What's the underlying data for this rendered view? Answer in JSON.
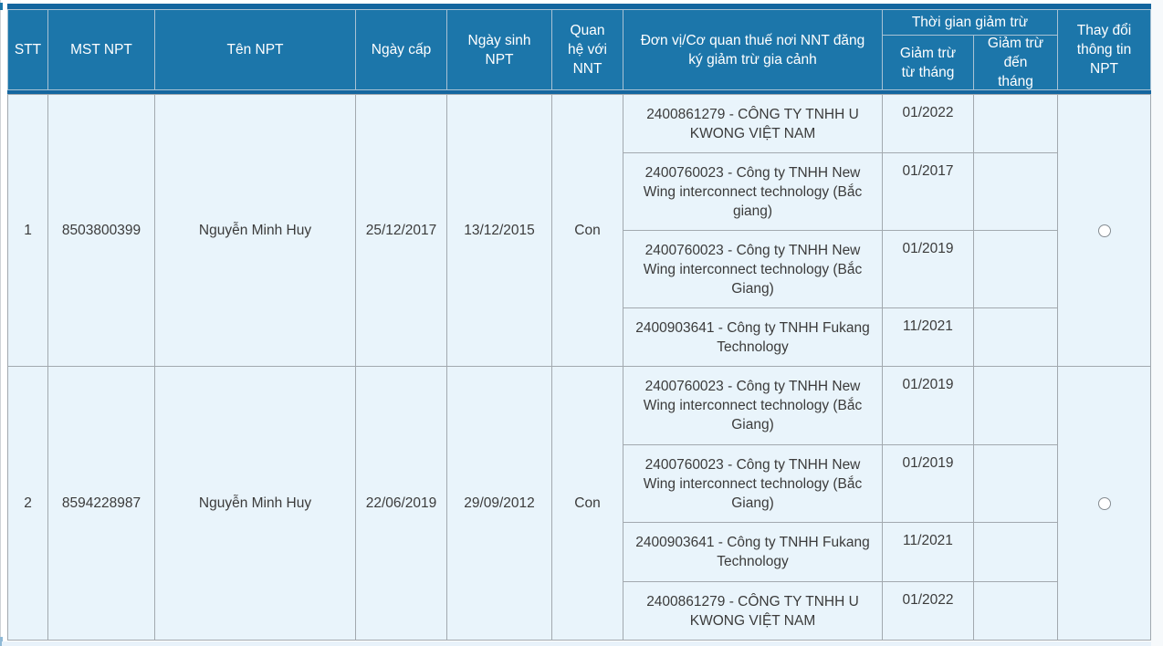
{
  "colors": {
    "header_blue": "#1c76aa",
    "header_band_blue": "#14669f",
    "body_cell_bg": "#e9f4fb",
    "body_border_gray": "#a2a9af",
    "header_text": "#ffffff",
    "body_text": "#3b3b3b"
  },
  "table": {
    "headers": {
      "stt": "STT",
      "mst": "MST NPT",
      "ten": "Tên NPT",
      "ngay_cap": "Ngày cấp",
      "ngay_sinh": "Ngày sinh NPT",
      "quan_he": "Quan hệ với NNT",
      "don_vi": "Đơn vị/Cơ quan thuế nơi NNT đăng ký giảm trừ gia cảnh",
      "thoi_gian": "Thời gian giảm trừ",
      "tu_thang": "Giảm trừ từ tháng",
      "den_thang": "Giảm trừ đến tháng",
      "thay_doi": "Thay đổi thông tin NPT"
    },
    "rows": [
      {
        "stt": "1",
        "mst": "8503800399",
        "ten": "Nguyễn Minh Huy",
        "ngay_cap": "25/12/2017",
        "ngay_sinh": "13/12/2015",
        "quan_he": "Con",
        "radio_checked": false,
        "deductions": [
          {
            "don_vi": "2400861279 - CÔNG TY TNHH U KWONG VIỆT NAM",
            "tu_thang": "01/2022",
            "den_thang": ""
          },
          {
            "don_vi": "2400760023 - Công ty TNHH New Wing interconnect technology (Bắc giang)",
            "tu_thang": "01/2017",
            "den_thang": ""
          },
          {
            "don_vi": "2400760023 - Công ty TNHH New Wing interconnect technology (Bắc Giang)",
            "tu_thang": "01/2019",
            "den_thang": ""
          },
          {
            "don_vi": "2400903641 - Công ty TNHH Fukang Technology",
            "tu_thang": "11/2021",
            "den_thang": ""
          }
        ]
      },
      {
        "stt": "2",
        "mst": "8594228987",
        "ten": "Nguyễn Minh Huy",
        "ngay_cap": "22/06/2019",
        "ngay_sinh": "29/09/2012",
        "quan_he": "Con",
        "radio_checked": false,
        "deductions": [
          {
            "don_vi": "2400760023 - Công ty TNHH New Wing interconnect technology (Bắc Giang)",
            "tu_thang": "01/2019",
            "den_thang": ""
          },
          {
            "don_vi": "2400760023 - Công ty TNHH New Wing interconnect technology (Bắc Giang)",
            "tu_thang": "01/2019",
            "den_thang": ""
          },
          {
            "don_vi": "2400903641 - Công ty TNHH Fukang Technology",
            "tu_thang": "11/2021",
            "den_thang": ""
          },
          {
            "don_vi": "2400861279 - CÔNG TY TNHH U KWONG VIỆT NAM",
            "tu_thang": "01/2022",
            "den_thang": ""
          }
        ]
      }
    ]
  }
}
